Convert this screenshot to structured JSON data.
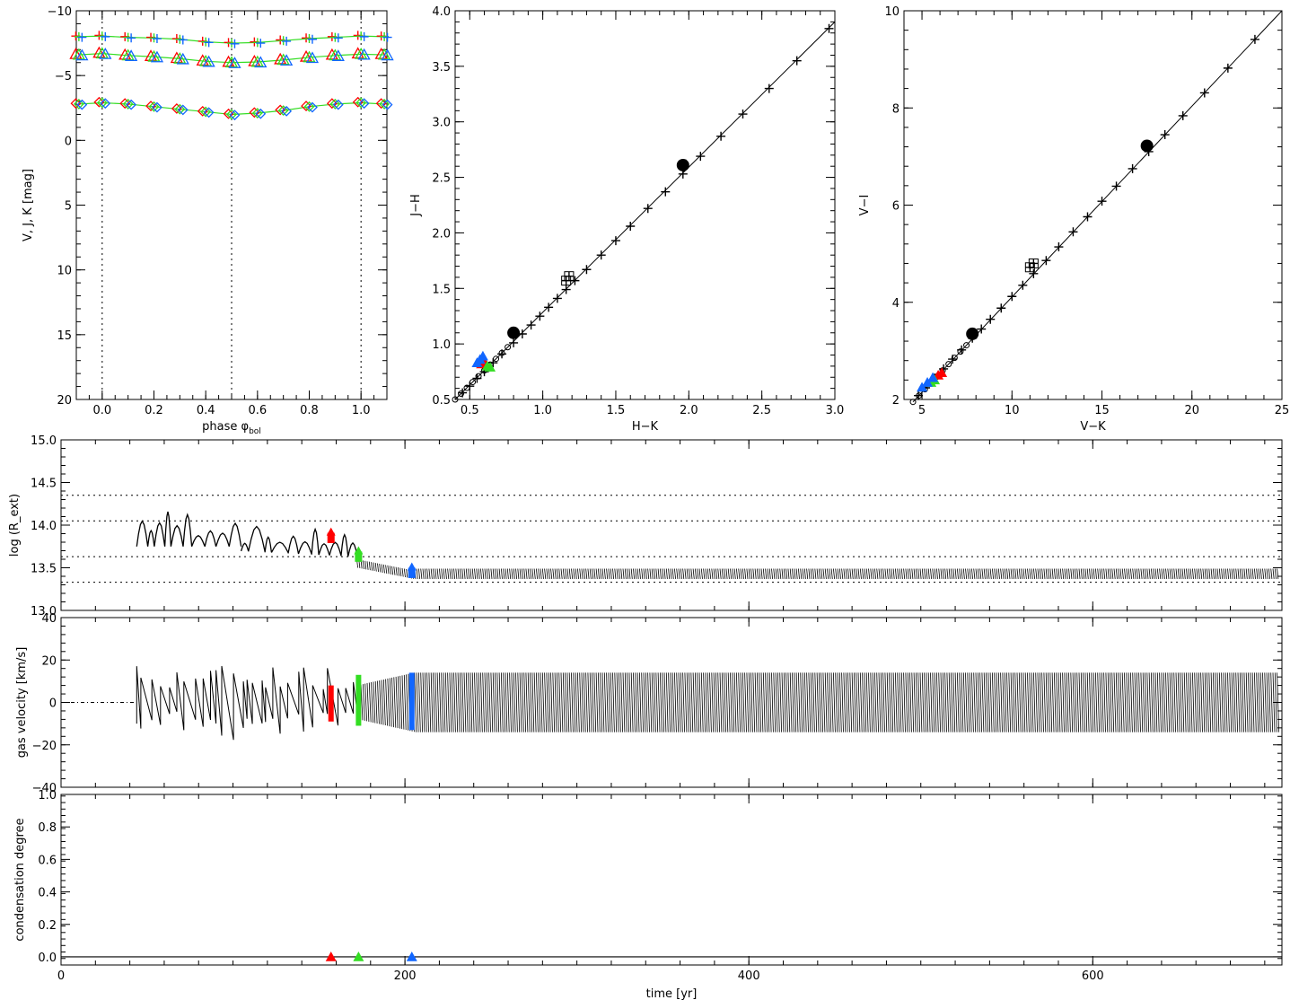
{
  "chart_data": [
    {
      "id": "panel-phase",
      "type": "scatter",
      "xlabel": "phase φ",
      "xlabel_sub": "bol",
      "ylabel": "V, J, K  [mag]",
      "xlim": [
        -0.1,
        1.1
      ],
      "ylim": [
        -10,
        20
      ],
      "y_inverted": true,
      "xticks": [
        "0.0",
        "0.2",
        "0.4",
        "0.6",
        "0.8",
        "1.0"
      ],
      "xtick_values": [
        0.0,
        0.2,
        0.4,
        0.6,
        0.8,
        1.0
      ],
      "yticks": [
        "−10",
        "−5",
        "0",
        "5",
        "10",
        "15",
        "20"
      ],
      "ytick_values": [
        -10,
        -5,
        0,
        5,
        10,
        15,
        20
      ],
      "vlines": [
        0.0,
        0.5,
        1.0
      ],
      "series": [
        {
          "name": "K",
          "marker": "plus",
          "phase": [
            -0.09,
            0.0,
            0.1,
            0.2,
            0.3,
            0.4,
            0.5,
            0.6,
            0.7,
            0.8,
            0.9,
            1.0,
            1.09
          ],
          "mag": [
            -8.0,
            -8.05,
            -7.95,
            -7.9,
            -7.8,
            -7.6,
            -7.5,
            -7.55,
            -7.7,
            -7.85,
            -7.95,
            -8.05,
            -8.0
          ]
        },
        {
          "name": "J",
          "marker": "triangle",
          "phase": [
            -0.09,
            0.0,
            0.1,
            0.2,
            0.3,
            0.4,
            0.5,
            0.6,
            0.7,
            0.8,
            0.9,
            1.0,
            1.09
          ],
          "mag": [
            -6.6,
            -6.7,
            -6.55,
            -6.45,
            -6.3,
            -6.1,
            -6.0,
            -6.05,
            -6.2,
            -6.4,
            -6.55,
            -6.65,
            -6.6
          ]
        },
        {
          "name": "V",
          "marker": "diamond",
          "phase": [
            -0.09,
            0.0,
            0.1,
            0.2,
            0.3,
            0.4,
            0.5,
            0.6,
            0.7,
            0.8,
            0.9,
            1.0,
            1.09
          ],
          "mag": [
            -2.8,
            -2.9,
            -2.8,
            -2.6,
            -2.4,
            -2.2,
            -2.0,
            -2.1,
            -2.3,
            -2.6,
            -2.8,
            -2.9,
            -2.8
          ]
        }
      ]
    },
    {
      "id": "panel-jh",
      "type": "line",
      "xlabel": "H−K",
      "ylabel": "J−H",
      "xlim": [
        0.4,
        3.0
      ],
      "ylim": [
        0.5,
        4.0
      ],
      "xticks": [
        "0.5",
        "1.0",
        "1.5",
        "2.0",
        "2.5",
        "3.0"
      ],
      "xtick_values": [
        0.5,
        1.0,
        1.5,
        2.0,
        2.5,
        3.0
      ],
      "yticks": [
        "0.5",
        "1.0",
        "1.5",
        "2.0",
        "2.5",
        "3.0",
        "3.5",
        "4.0"
      ],
      "ytick_values": [
        0.5,
        1.0,
        1.5,
        2.0,
        2.5,
        3.0,
        3.5,
        4.0
      ],
      "line": {
        "x": [
          0.4,
          3.0
        ],
        "y": [
          0.5,
          3.9
        ]
      },
      "plus_x": [
        0.45,
        0.5,
        0.55,
        0.6,
        0.66,
        0.72,
        0.8,
        0.86,
        0.92,
        0.98,
        1.04,
        1.1,
        1.16,
        1.22,
        1.3,
        1.4,
        1.5,
        1.6,
        1.72,
        1.84,
        1.96,
        2.08,
        2.22,
        2.37,
        2.55,
        2.74,
        2.96
      ],
      "plus_y": [
        0.56,
        0.62,
        0.69,
        0.75,
        0.83,
        0.91,
        1.01,
        1.09,
        1.17,
        1.25,
        1.33,
        1.41,
        1.49,
        1.57,
        1.67,
        1.8,
        1.93,
        2.06,
        2.22,
        2.37,
        2.53,
        2.69,
        2.87,
        3.07,
        3.3,
        3.55,
        3.84
      ],
      "circles": {
        "x": [
          0.8,
          1.96
        ],
        "y": [
          1.1,
          2.61
        ]
      },
      "squares": {
        "x": [
          1.16,
          1.18
        ],
        "y": [
          1.57,
          1.61
        ]
      },
      "colored": [
        {
          "name": "red",
          "x": [
            0.58,
            0.6
          ],
          "y": [
            0.82,
            0.84
          ]
        },
        {
          "name": "green",
          "x": [
            0.62,
            0.64
          ],
          "y": [
            0.8,
            0.79
          ]
        },
        {
          "name": "blue",
          "x": [
            0.55,
            0.57,
            0.59
          ],
          "y": [
            0.83,
            0.86,
            0.89
          ]
        }
      ]
    },
    {
      "id": "panel-vi",
      "type": "line",
      "xlabel": "V−K",
      "ylabel": "V−I",
      "xlim": [
        4,
        25
      ],
      "ylim": [
        2,
        10
      ],
      "xticks": [
        "5",
        "10",
        "15",
        "20",
        "25"
      ],
      "xtick_values": [
        5,
        10,
        15,
        20,
        25
      ],
      "yticks": [
        "2",
        "4",
        "6",
        "8",
        "10"
      ],
      "ytick_values": [
        2,
        4,
        6,
        8,
        10
      ],
      "line": {
        "x": [
          4.5,
          25
        ],
        "y": [
          1.95,
          10
        ]
      },
      "plus_x": [
        4.8,
        5.2,
        5.7,
        6.2,
        6.7,
        7.2,
        7.8,
        8.3,
        8.8,
        9.4,
        10.0,
        10.6,
        11.2,
        11.9,
        12.6,
        13.4,
        14.2,
        15.0,
        15.8,
        16.7,
        17.6,
        18.5,
        19.5,
        20.7,
        22.0,
        23.5
      ],
      "plus_y": [
        2.08,
        2.24,
        2.44,
        2.63,
        2.83,
        3.02,
        3.26,
        3.45,
        3.65,
        3.88,
        4.12,
        4.35,
        4.59,
        4.86,
        5.14,
        5.45,
        5.76,
        6.08,
        6.39,
        6.75,
        7.1,
        7.45,
        7.84,
        8.31,
        8.82,
        9.41
      ],
      "circles": {
        "x": [
          7.8,
          17.5
        ],
        "y": [
          3.35,
          7.22
        ]
      },
      "squares": {
        "x": [
          11.0,
          11.2
        ],
        "y": [
          4.72,
          4.8
        ]
      },
      "colored": [
        {
          "name": "red",
          "x": [
            5.9,
            6.1
          ],
          "y": [
            2.5,
            2.55
          ]
        },
        {
          "name": "green",
          "x": [
            5.5,
            5.7
          ],
          "y": [
            2.35,
            2.4
          ]
        },
        {
          "name": "blue",
          "x": [
            5.0,
            5.3,
            5.6
          ],
          "y": [
            2.25,
            2.35,
            2.45
          ]
        }
      ]
    },
    {
      "id": "panel-radius",
      "type": "line",
      "xlabel": "",
      "ylabel": "log (R_ext)",
      "xlim": [
        0,
        710
      ],
      "ylim": [
        13.0,
        15.0
      ],
      "yticks": [
        "13.0",
        "13.5",
        "14.0",
        "14.5",
        "15.0"
      ],
      "ytick_values": [
        13.0,
        13.5,
        14.0,
        14.5,
        15.0
      ],
      "hlines": [
        14.35,
        14.05,
        13.63,
        13.33
      ],
      "markers": [
        {
          "name": "red",
          "time": 157,
          "value": 13.85
        },
        {
          "name": "green",
          "time": 173,
          "value": 13.63
        },
        {
          "name": "blue",
          "time": 204,
          "value": 13.44
        }
      ]
    },
    {
      "id": "panel-velocity",
      "type": "line",
      "xlabel": "",
      "ylabel": "gas velocity [km/s]",
      "xlim": [
        0,
        710
      ],
      "ylim": [
        -40,
        40
      ],
      "yticks": [
        "−40",
        "−20",
        "0",
        "20",
        "40"
      ],
      "ytick_values": [
        -40,
        -20,
        0,
        20,
        40
      ],
      "markers": [
        {
          "name": "red",
          "time": 157,
          "range": [
            -9,
            8
          ]
        },
        {
          "name": "green",
          "time": 173,
          "range": [
            -11,
            13
          ]
        },
        {
          "name": "blue",
          "time": 204,
          "range": [
            -13,
            14
          ]
        }
      ]
    },
    {
      "id": "panel-condensation",
      "type": "scatter",
      "xlabel": "time [yr]",
      "ylabel": "condensation degree",
      "xlim": [
        0,
        710
      ],
      "ylim": [
        -0.05,
        1.0
      ],
      "xticks": [
        "0",
        "200",
        "400",
        "600"
      ],
      "xtick_values": [
        0,
        200,
        400,
        600
      ],
      "yticks": [
        "0.0",
        "0.2",
        "0.4",
        "0.6",
        "0.8",
        "1.0"
      ],
      "ytick_values": [
        0.0,
        0.2,
        0.4,
        0.6,
        0.8,
        1.0
      ],
      "markers": [
        {
          "name": "red",
          "time": 157,
          "value": 0.0
        },
        {
          "name": "green",
          "time": 173,
          "value": 0.0
        },
        {
          "name": "blue",
          "time": 204,
          "value": 0.0
        }
      ]
    }
  ],
  "colors": {
    "red": "#ff0000",
    "green": "#33dd22",
    "blue": "#1166ff",
    "black": "#000000"
  }
}
